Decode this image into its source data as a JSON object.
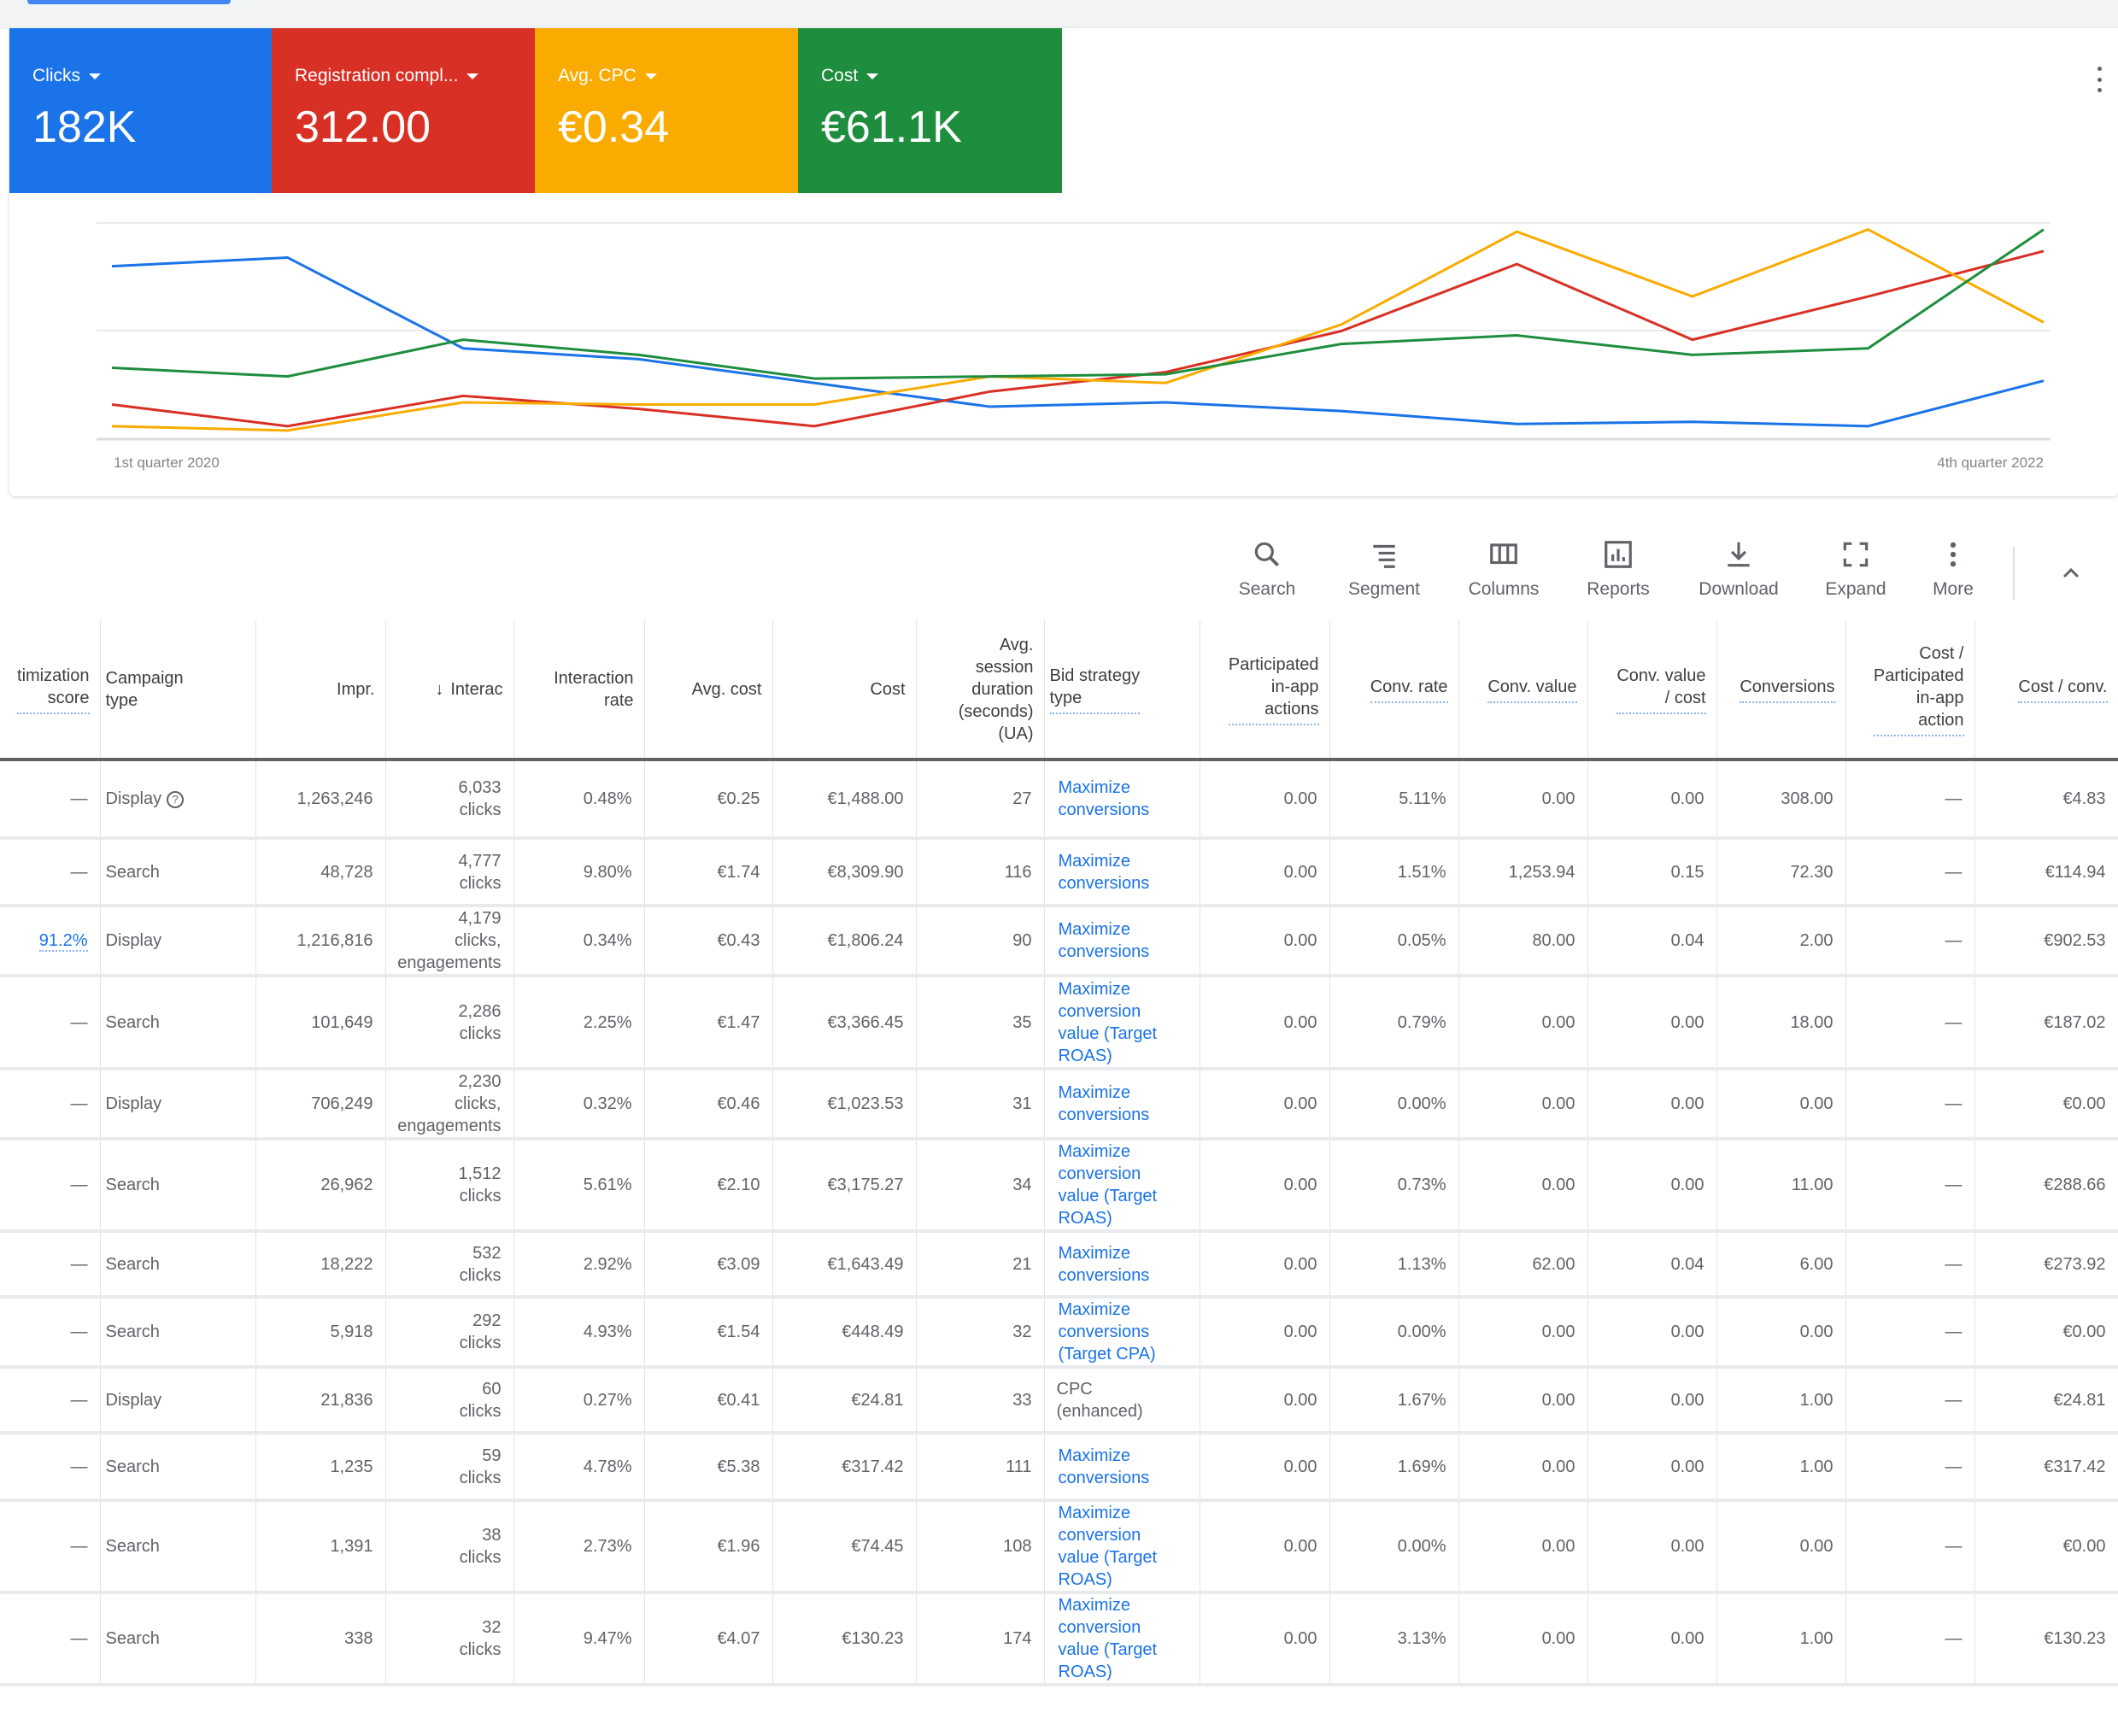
{
  "metrics": [
    {
      "label": "Clicks",
      "value": "182K",
      "color": "#1a73e8"
    },
    {
      "label": "Registration compl...",
      "value": "312.00",
      "color": "#d93025"
    },
    {
      "label": "Avg. CPC",
      "value": "€0.34",
      "color": "#f9ab00"
    },
    {
      "label": "Cost",
      "value": "€61.1K",
      "color": "#1e8e3e"
    }
  ],
  "chart_data": {
    "type": "line",
    "x": [
      "Q1 2020",
      "Q2 2020",
      "Q3 2020",
      "Q4 2020",
      "Q1 2021",
      "Q2 2021",
      "Q3 2021",
      "Q4 2021",
      "Q1 2022",
      "Q2 2022",
      "Q3 2022",
      "Q4 2022"
    ],
    "x_tick_labels": {
      "start": "1st quarter 2020",
      "end": "4th quarter 2022"
    },
    "ylim": [
      0,
      100
    ],
    "y_units": "relative (each metric normalized to its own scale)",
    "grid": true,
    "series": [
      {
        "name": "Clicks",
        "color": "#1a73e8",
        "values": [
          80,
          84,
          42,
          37,
          26,
          15,
          17,
          13,
          7,
          8,
          6,
          27
        ]
      },
      {
        "name": "Registration compl...",
        "color": "#d93025",
        "values": [
          16,
          6,
          20,
          14,
          6,
          22,
          31,
          50,
          81,
          46,
          66,
          87
        ]
      },
      {
        "name": "Avg. CPC",
        "color": "#f9ab00",
        "values": [
          6,
          4,
          17,
          16,
          16,
          29,
          26,
          53,
          96,
          66,
          97,
          54
        ]
      },
      {
        "name": "Cost",
        "color": "#1e8e3e",
        "values": [
          33,
          29,
          46,
          39,
          28,
          29,
          30,
          44,
          48,
          39,
          42,
          97
        ]
      }
    ]
  },
  "toolbar": [
    {
      "label": "Search",
      "icon": "search-icon"
    },
    {
      "label": "Segment",
      "icon": "segment-icon"
    },
    {
      "label": "Columns",
      "icon": "columns-icon"
    },
    {
      "label": "Reports",
      "icon": "reports-icon"
    },
    {
      "label": "Download",
      "icon": "download-icon"
    },
    {
      "label": "Expand",
      "icon": "expand-icon"
    },
    {
      "label": "More",
      "icon": "more-icon"
    }
  ],
  "table": {
    "headers": [
      "timization\nscore",
      "Campaign\ntype",
      "Impr.",
      "Interac",
      "Interaction\nrate",
      "Avg. cost",
      "Cost",
      "Avg.\nsession\nduration\n(seconds)\n(UA)",
      "Bid strategy\ntype",
      "Participated\nin-app\nactions",
      "Conv. rate",
      "Conv. value",
      "Conv. value\n/ cost",
      "Conversions",
      "Cost /\nParticipated\nin-app\naction",
      "Cost / conv."
    ],
    "rows": [
      [
        "—",
        "Display",
        "1,263,246",
        "6,033\nclicks",
        "0.48%",
        "€0.25",
        "€1,488.00",
        "27",
        "Maximize conversions",
        "0.00",
        "5.11%",
        "0.00",
        "0.00",
        "308.00",
        "—",
        "€4.83"
      ],
      [
        "—",
        "Search",
        "48,728",
        "4,777\nclicks",
        "9.80%",
        "€1.74",
        "€8,309.90",
        "116",
        "Maximize conversions",
        "0.00",
        "1.51%",
        "1,253.94",
        "0.15",
        "72.30",
        "—",
        "€114.94"
      ],
      [
        "91.2%",
        "Display",
        "1,216,816",
        "4,179\nclicks,\nengagements",
        "0.34%",
        "€0.43",
        "€1,806.24",
        "90",
        "Maximize conversions",
        "0.00",
        "0.05%",
        "80.00",
        "0.04",
        "2.00",
        "—",
        "€902.53"
      ],
      [
        "—",
        "Search",
        "101,649",
        "2,286\nclicks",
        "2.25%",
        "€1.47",
        "€3,366.45",
        "35",
        "Maximize conversion value (Target ROAS)",
        "0.00",
        "0.79%",
        "0.00",
        "0.00",
        "18.00",
        "—",
        "€187.02"
      ],
      [
        "—",
        "Display",
        "706,249",
        "2,230\nclicks,\nengagements",
        "0.32%",
        "€0.46",
        "€1,023.53",
        "31",
        "Maximize conversions",
        "0.00",
        "0.00%",
        "0.00",
        "0.00",
        "0.00",
        "—",
        "€0.00"
      ],
      [
        "—",
        "Search",
        "26,962",
        "1,512\nclicks",
        "5.61%",
        "€2.10",
        "€3,175.27",
        "34",
        "Maximize conversion value (Target ROAS)",
        "0.00",
        "0.73%",
        "0.00",
        "0.00",
        "11.00",
        "—",
        "€288.66"
      ],
      [
        "—",
        "Search",
        "18,222",
        "532\nclicks",
        "2.92%",
        "€3.09",
        "€1,643.49",
        "21",
        "Maximize conversions",
        "0.00",
        "1.13%",
        "62.00",
        "0.04",
        "6.00",
        "—",
        "€273.92"
      ],
      [
        "—",
        "Search",
        "5,918",
        "292\nclicks",
        "4.93%",
        "€1.54",
        "€448.49",
        "32",
        "Maximize conversions (Target CPA)",
        "0.00",
        "0.00%",
        "0.00",
        "0.00",
        "0.00",
        "—",
        "€0.00"
      ],
      [
        "—",
        "Display",
        "21,836",
        "60\nclicks",
        "0.27%",
        "€0.41",
        "€24.81",
        "33",
        "CPC (enhanced)",
        "0.00",
        "1.67%",
        "0.00",
        "0.00",
        "1.00",
        "—",
        "€24.81"
      ],
      [
        "—",
        "Search",
        "1,235",
        "59\nclicks",
        "4.78%",
        "€5.38",
        "€317.42",
        "111",
        "Maximize conversions",
        "0.00",
        "1.69%",
        "0.00",
        "0.00",
        "1.00",
        "—",
        "€317.42"
      ],
      [
        "—",
        "Search",
        "1,391",
        "38\nclicks",
        "2.73%",
        "€1.96",
        "€74.45",
        "108",
        "Maximize conversion value (Target ROAS)",
        "0.00",
        "0.00%",
        "0.00",
        "0.00",
        "0.00",
        "—",
        "€0.00"
      ],
      [
        "—",
        "Search",
        "338",
        "32\nclicks",
        "9.47%",
        "€4.07",
        "€130.23",
        "174",
        "Maximize conversion value (Target ROAS)",
        "0.00",
        "3.13%",
        "0.00",
        "0.00",
        "1.00",
        "—",
        "€130.23"
      ]
    ],
    "help_icon": "?",
    "sort_icon": "↓"
  }
}
